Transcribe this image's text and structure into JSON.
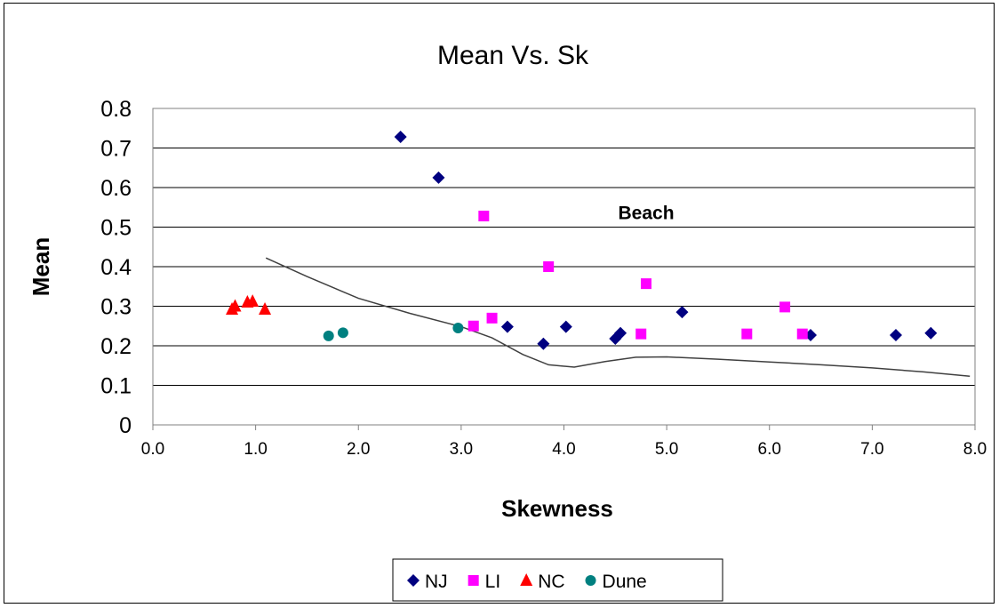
{
  "chart_data": {
    "type": "scatter",
    "title": "Mean Vs. Sk",
    "xlabel": "Skewness",
    "ylabel": "Mean",
    "xlim": [
      0,
      8
    ],
    "ylim": [
      0,
      0.8
    ],
    "x_ticks": [
      "0.0",
      "1.0",
      "2.0",
      "3.0",
      "4.0",
      "5.0",
      "6.0",
      "7.0",
      "8.0"
    ],
    "y_ticks": [
      "0",
      "0.1",
      "0.2",
      "0.3",
      "0.4",
      "0.5",
      "0.6",
      "0.7",
      "0.8"
    ],
    "grid": "horizontal",
    "legend_position": "bottom",
    "annotations": [
      {
        "text": "Beach",
        "x": 4.8,
        "y": 0.52
      }
    ],
    "series": [
      {
        "name": "NJ",
        "marker": "diamond",
        "color": "#000080",
        "points": [
          [
            2.41,
            0.728
          ],
          [
            2.78,
            0.625
          ],
          [
            3.45,
            0.248
          ],
          [
            3.8,
            0.205
          ],
          [
            4.02,
            0.248
          ],
          [
            4.5,
            0.218
          ],
          [
            4.55,
            0.232
          ],
          [
            5.15,
            0.285
          ],
          [
            6.4,
            0.227
          ],
          [
            7.23,
            0.227
          ],
          [
            7.57,
            0.232
          ]
        ]
      },
      {
        "name": "LI",
        "marker": "square",
        "color": "#FF00FF",
        "points": [
          [
            3.12,
            0.25
          ],
          [
            3.22,
            0.528
          ],
          [
            3.3,
            0.27
          ],
          [
            3.85,
            0.4
          ],
          [
            4.75,
            0.23
          ],
          [
            4.8,
            0.357
          ],
          [
            5.78,
            0.23
          ],
          [
            6.15,
            0.298
          ],
          [
            6.32,
            0.23
          ]
        ]
      },
      {
        "name": "NC",
        "marker": "triangle",
        "color": "#FF0000",
        "points": [
          [
            0.77,
            0.292
          ],
          [
            0.8,
            0.3
          ],
          [
            0.92,
            0.31
          ],
          [
            0.97,
            0.312
          ],
          [
            1.09,
            0.292
          ]
        ]
      },
      {
        "name": "Dune",
        "marker": "circle",
        "color": "#008080",
        "points": [
          [
            1.71,
            0.225
          ],
          [
            1.85,
            0.233
          ],
          [
            2.97,
            0.245
          ]
        ]
      }
    ],
    "trend_line": {
      "color": "#404040",
      "points": [
        [
          1.1,
          0.422
        ],
        [
          1.5,
          0.375
        ],
        [
          2.0,
          0.32
        ],
        [
          2.5,
          0.282
        ],
        [
          3.0,
          0.248
        ],
        [
          3.3,
          0.22
        ],
        [
          3.6,
          0.178
        ],
        [
          3.85,
          0.152
        ],
        [
          4.1,
          0.146
        ],
        [
          4.4,
          0.16
        ],
        [
          4.7,
          0.171
        ],
        [
          5.0,
          0.172
        ],
        [
          5.5,
          0.166
        ],
        [
          6.0,
          0.159
        ],
        [
          6.5,
          0.152
        ],
        [
          7.0,
          0.144
        ],
        [
          7.5,
          0.134
        ],
        [
          7.95,
          0.123
        ]
      ]
    }
  }
}
